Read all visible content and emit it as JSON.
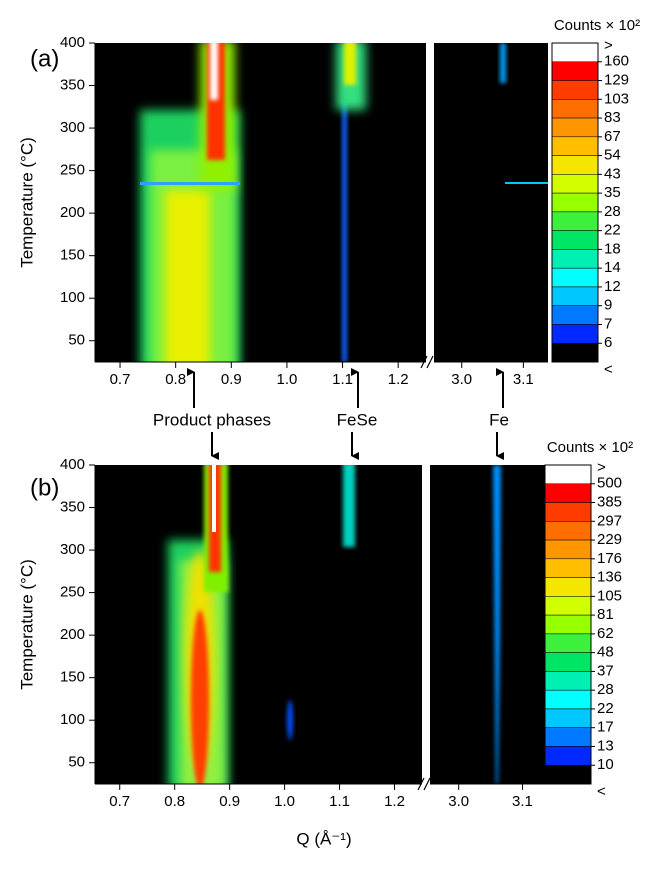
{
  "chart_data": [
    {
      "type": "heatmap",
      "title": "(a)",
      "ylabel": "Temperature (°C)",
      "ylim": [
        25,
        400
      ],
      "yticks": [
        50,
        100,
        150,
        200,
        250,
        300,
        350,
        400
      ],
      "x_segments": [
        {
          "xlim": [
            0.655,
            1.25
          ],
          "xticks": [
            0.7,
            0.8,
            0.9,
            {
              "value": 1,
              "label": "1.0"
            },
            1.1,
            1.2
          ]
        },
        {
          "xlim": [
            2.955,
            3.14
          ],
          "xticks": [
            {
              "value": 3,
              "label": "3.0"
            },
            3.1
          ]
        }
      ],
      "colorbar": {
        "title": "Counts × 10²",
        "top_label": ">",
        "bottom_label": "<",
        "levels": [
          160,
          129,
          103,
          83,
          67,
          54,
          43,
          35,
          28,
          22,
          18,
          14,
          12,
          9,
          7,
          6
        ],
        "colors": [
          "#ffffff",
          "#ff0000",
          "#ff3c00",
          "#ff6e00",
          "#ff9600",
          "#ffbe00",
          "#f5e600",
          "#d2ff00",
          "#96ff00",
          "#3cf03c",
          "#00e664",
          "#00f0b4",
          "#00ffff",
          "#00c8ff",
          "#0078ff",
          "#0028ff",
          "#000000"
        ]
      }
    },
    {
      "type": "heatmap",
      "title": "(b)",
      "ylabel": "Temperature (°C)",
      "xlabel": "Q (Å⁻¹)",
      "ylim": [
        25,
        400
      ],
      "yticks": [
        50,
        100,
        150,
        200,
        250,
        300,
        350,
        400
      ],
      "x_segments": [
        {
          "xlim": [
            0.655,
            1.25
          ],
          "xticks": [
            0.7,
            0.8,
            0.9,
            {
              "value": 1,
              "label": "1.0"
            },
            1.1,
            1.2
          ]
        },
        {
          "xlim": [
            2.955,
            3.14
          ],
          "xticks": [
            {
              "value": 3,
              "label": "3.0"
            },
            3.1
          ]
        }
      ],
      "colorbar": {
        "title": "Counts × 10²",
        "top_label": ">",
        "bottom_label": "<",
        "levels": [
          500,
          385,
          297,
          229,
          176,
          136,
          105,
          81,
          62,
          48,
          37,
          28,
          22,
          17,
          13,
          10
        ],
        "colors": [
          "#ffffff",
          "#ff0000",
          "#ff3c00",
          "#ff6e00",
          "#ff9600",
          "#ffbe00",
          "#f5e600",
          "#d2ff00",
          "#96ff00",
          "#3cf03c",
          "#00e664",
          "#00f0b4",
          "#00ffff",
          "#00c8ff",
          "#0078ff",
          "#0028ff",
          "#000000"
        ]
      },
      "annotations": [
        "Product phases",
        "FeSe",
        "Fe"
      ]
    }
  ]
}
